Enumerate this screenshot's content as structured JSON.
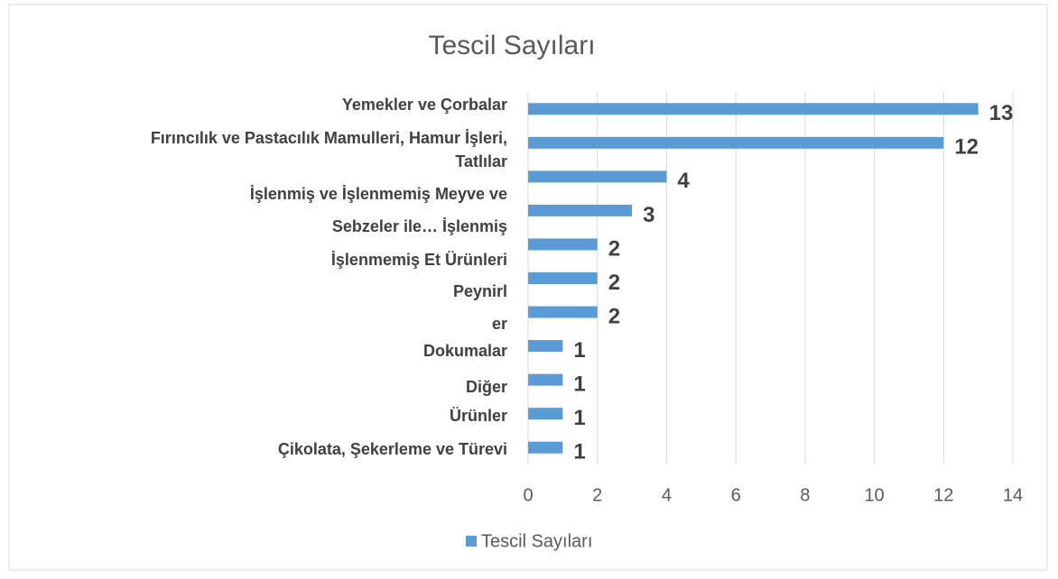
{
  "chart_data": {
    "type": "barh",
    "title": "Tescil Sayıları",
    "categories": [
      [
        "Yemekler ve Çorbalar"
      ],
      [
        "Fırıncılık ve Pastacılık Mamulleri, Hamur İşleri,",
        "Tatlılar"
      ],
      [
        "İşlenmiş ve İşlenmemiş Meyve ve",
        "Sebzeler ile… İşlenmiş"
      ],
      [
        "İşlenmemiş Et Ürünleri"
      ],
      [
        "Peynirl",
        "er"
      ],
      [
        "Dokumalar"
      ],
      [
        "Diğer"
      ],
      [
        "Ürünler"
      ],
      [
        "Çikolata, Şekerleme ve Türevi"
      ],
      null,
      null
    ],
    "series": [
      {
        "name": "Tescil Sayıları",
        "color": "#5b9bd5",
        "values": [
          13,
          12,
          4,
          3,
          2,
          2,
          2,
          1,
          1,
          1,
          1
        ]
      }
    ],
    "xlim": [
      0,
      14
    ],
    "xticks": [
      0,
      2,
      4,
      6,
      8,
      10,
      12,
      14
    ],
    "grid": true,
    "legend": "bottom"
  }
}
